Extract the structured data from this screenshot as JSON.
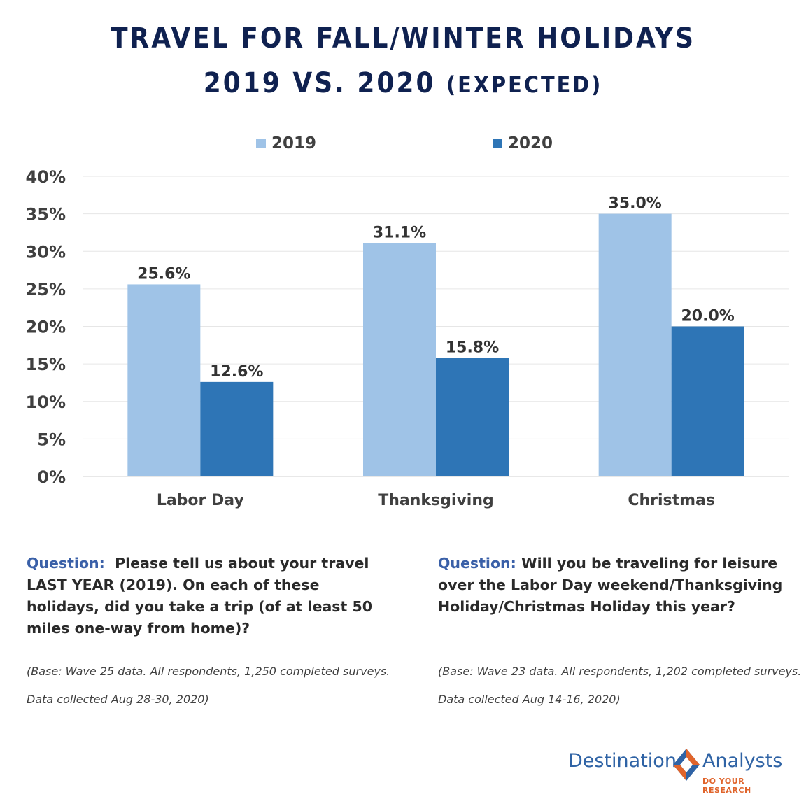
{
  "title": {
    "line1": "TRAVEL FOR FALL/WINTER HOLIDAYS",
    "line2_main": "2019 VS. 2020",
    "line2_sub": "(EXPECTED)"
  },
  "colors": {
    "series_2019": "#9fc3e7",
    "series_2020": "#2e75b6",
    "title": "#0f2150",
    "question_label": "#3a60a8",
    "logo_blue": "#2f63a5",
    "logo_orange": "#e0642b"
  },
  "chart_data": {
    "type": "bar",
    "title": "TRAVEL FOR FALL/WINTER HOLIDAYS 2019 VS. 2020 (EXPECTED)",
    "categories": [
      "Labor Day",
      "Thanksgiving",
      "Christmas"
    ],
    "series": [
      {
        "name": "2019",
        "values": [
          25.6,
          31.1,
          35.0
        ],
        "labels": [
          "25.6%",
          "31.1%",
          "35.0%"
        ]
      },
      {
        "name": "2020",
        "values": [
          12.6,
          15.8,
          20.0
        ],
        "labels": [
          "12.6%",
          "15.8%",
          "20.0%"
        ]
      }
    ],
    "ylim": [
      0,
      40
    ],
    "yticks": [
      0,
      5,
      10,
      15,
      20,
      25,
      30,
      35,
      40
    ],
    "ytick_labels": [
      "0%",
      "5%",
      "10%",
      "15%",
      "20%",
      "25%",
      "30%",
      "35%",
      "40%"
    ],
    "grid": true,
    "legend": "top-center",
    "xlabel": "",
    "ylabel": ""
  },
  "questions": [
    {
      "label": "Question:",
      "text": "Please tell us about your travel LAST YEAR (2019). On each of these holidays, did you take a trip (of at least 50 miles one-way from home)?",
      "base": "(Base: Wave 25 data. All respondents, 1,250 completed surveys. Data collected Aug 28-30, 2020)"
    },
    {
      "label": "Question:",
      "text": "Will you be traveling for leisure over the Labor Day weekend/Thanksgiving Holiday/Christmas Holiday this year?",
      "base": "(Base: Wave 23 data. All respondents, 1,202 completed surveys. Data collected Aug 14-16, 2020)"
    }
  ],
  "logo": {
    "word1": "Destination",
    "word2": "Analysts",
    "tagline": "DO YOUR RESEARCH",
    "icon": "diamond-icon"
  }
}
